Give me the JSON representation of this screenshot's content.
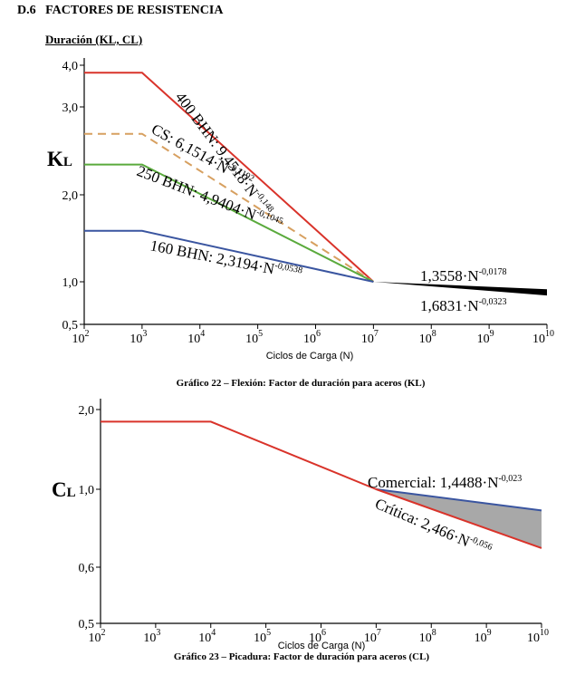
{
  "page": {
    "section_number": "D.6",
    "section_title": "FACTORES DE RESISTENCIA",
    "subsection": "Duración (KL, CL)"
  },
  "chart_data": [
    {
      "type": "line",
      "title": "",
      "caption": "Gráfico 22 – Flexión: Factor de duración para aceros (KL)",
      "xlabel": "Ciclos de Carga (N)",
      "ylabel": "KL",
      "x_scale": "log",
      "y_scale": "log",
      "xlim": [
        100,
        10000000000
      ],
      "ylim": [
        0.5,
        4.0
      ],
      "x_ticks": [
        {
          "value": 100,
          "base": "10",
          "exp": "2"
        },
        {
          "value": 1000,
          "base": "10",
          "exp": "3"
        },
        {
          "value": 10000,
          "base": "10",
          "exp": "4"
        },
        {
          "value": 100000,
          "base": "10",
          "exp": "5"
        },
        {
          "value": 1000000,
          "base": "10",
          "exp": "6"
        },
        {
          "value": 10000000,
          "base": "10",
          "exp": "7"
        },
        {
          "value": 100000000,
          "base": "10",
          "exp": "8"
        },
        {
          "value": 1000000000,
          "base": "10",
          "exp": "9"
        },
        {
          "value": 10000000000,
          "base": "10",
          "exp": "10"
        }
      ],
      "y_ticks": [
        {
          "value": 0.5,
          "label": "0,5"
        },
        {
          "value": 1.0,
          "label": "1,0"
        },
        {
          "value": 2.0,
          "label": "2,0"
        },
        {
          "value": 3.0,
          "label": "3,0"
        },
        {
          "value": 4.0,
          "label": "4,0"
        }
      ],
      "series": [
        {
          "name": "400 BHN",
          "color": "#d9332a",
          "dash": false,
          "points": [
            [
              100,
              3.8
            ],
            [
              1000,
              3.8
            ],
            [
              10000000,
              1.0
            ]
          ]
        },
        {
          "name": "CS",
          "color": "#d7a060",
          "dash": true,
          "points": [
            [
              100,
              2.65
            ],
            [
              1000,
              2.65
            ],
            [
              10000000,
              1.0
            ]
          ]
        },
        {
          "name": "250 BHN",
          "color": "#5aaa3c",
          "dash": false,
          "points": [
            [
              100,
              2.3
            ],
            [
              1000,
              2.3
            ],
            [
              10000000,
              1.0
            ]
          ]
        },
        {
          "name": "160 BHN",
          "color": "#3a55a0",
          "dash": false,
          "points": [
            [
              100,
              1.5
            ],
            [
              1000,
              1.5
            ],
            [
              10000000,
              1.0
            ]
          ]
        }
      ],
      "band": {
        "upper": [
          [
            10000000,
            1.0
          ],
          [
            10000000000,
            0.885
          ]
        ],
        "lower": [
          [
            10000000,
            1.0
          ],
          [
            10000000000,
            0.8
          ]
        ],
        "fill": "#000000"
      },
      "annotations": [
        {
          "key": "a400",
          "base": "400 BHN: 9,4518·N",
          "exp": "-0,148"
        },
        {
          "key": "acs",
          "base": "CS: 6,1514·N",
          "exp": "-0,1192"
        },
        {
          "key": "a250",
          "base": "250 BHN: 4,9404·N",
          "exp": "-0,1045"
        },
        {
          "key": "a160",
          "base": "160 BHN: 2,3194·N",
          "exp": "-0,0538"
        },
        {
          "key": "aup",
          "base": "1,3558·N",
          "exp": "-0,0178"
        },
        {
          "key": "alow",
          "base": "1,6831·N",
          "exp": "-0,0323"
        }
      ]
    },
    {
      "type": "line",
      "title": "",
      "caption": "Gráfico 23 – Picadura: Factor de duración para aceros (CL)",
      "xlabel": "Ciclos de Carga (N)",
      "ylabel": "CL",
      "x_scale": "log",
      "y_scale": "log",
      "xlim": [
        100,
        10000000000
      ],
      "ylim": [
        0.5,
        2.2
      ],
      "x_ticks": [
        {
          "value": 100,
          "base": "10",
          "exp": "2"
        },
        {
          "value": 1000,
          "base": "10",
          "exp": "3"
        },
        {
          "value": 10000,
          "base": "10",
          "exp": "4"
        },
        {
          "value": 100000,
          "base": "10",
          "exp": "5"
        },
        {
          "value": 1000000,
          "base": "10",
          "exp": "6"
        },
        {
          "value": 10000000,
          "base": "10",
          "exp": "7"
        },
        {
          "value": 100000000,
          "base": "10",
          "exp": "8"
        },
        {
          "value": 1000000000,
          "base": "10",
          "exp": "9"
        },
        {
          "value": 10000000000,
          "base": "10",
          "exp": "10"
        }
      ],
      "y_ticks": [
        {
          "value": 0.5,
          "label": "0,5"
        },
        {
          "value": 0.6,
          "label": "0,6"
        },
        {
          "value": 1.0,
          "label": "1,0"
        },
        {
          "value": 2.0,
          "label": "2,0"
        }
      ],
      "series": [
        {
          "name": "",
          "color": "#d9332a",
          "dash": false,
          "points": [
            [
              100,
              1.8
            ],
            [
              10000,
              1.8
            ],
            [
              10000000,
              1.0
            ]
          ]
        },
        {
          "name": "Comercial",
          "color": "#3a55a0",
          "dash": false,
          "points": [
            [
              10000000,
              1.0
            ],
            [
              10000000000,
              0.87
            ]
          ]
        },
        {
          "name": "Crítica",
          "color": "#d9332a",
          "dash": false,
          "points": [
            [
              10000000,
              1.0
            ],
            [
              10000000000,
              0.68
            ]
          ]
        }
      ],
      "band": {
        "upper": [
          [
            10000000,
            1.0
          ],
          [
            10000000000,
            0.87
          ]
        ],
        "lower": [
          [
            10000000,
            1.0
          ],
          [
            10000000000,
            0.68
          ]
        ],
        "fill": "#a8a8a8"
      },
      "annotations": [
        {
          "key": "acom",
          "base": "Comercial: 1,4488·N",
          "exp": "-0,023"
        },
        {
          "key": "acrit",
          "base": "Crítica: 2,466·N",
          "exp": "-0,056"
        }
      ]
    }
  ]
}
